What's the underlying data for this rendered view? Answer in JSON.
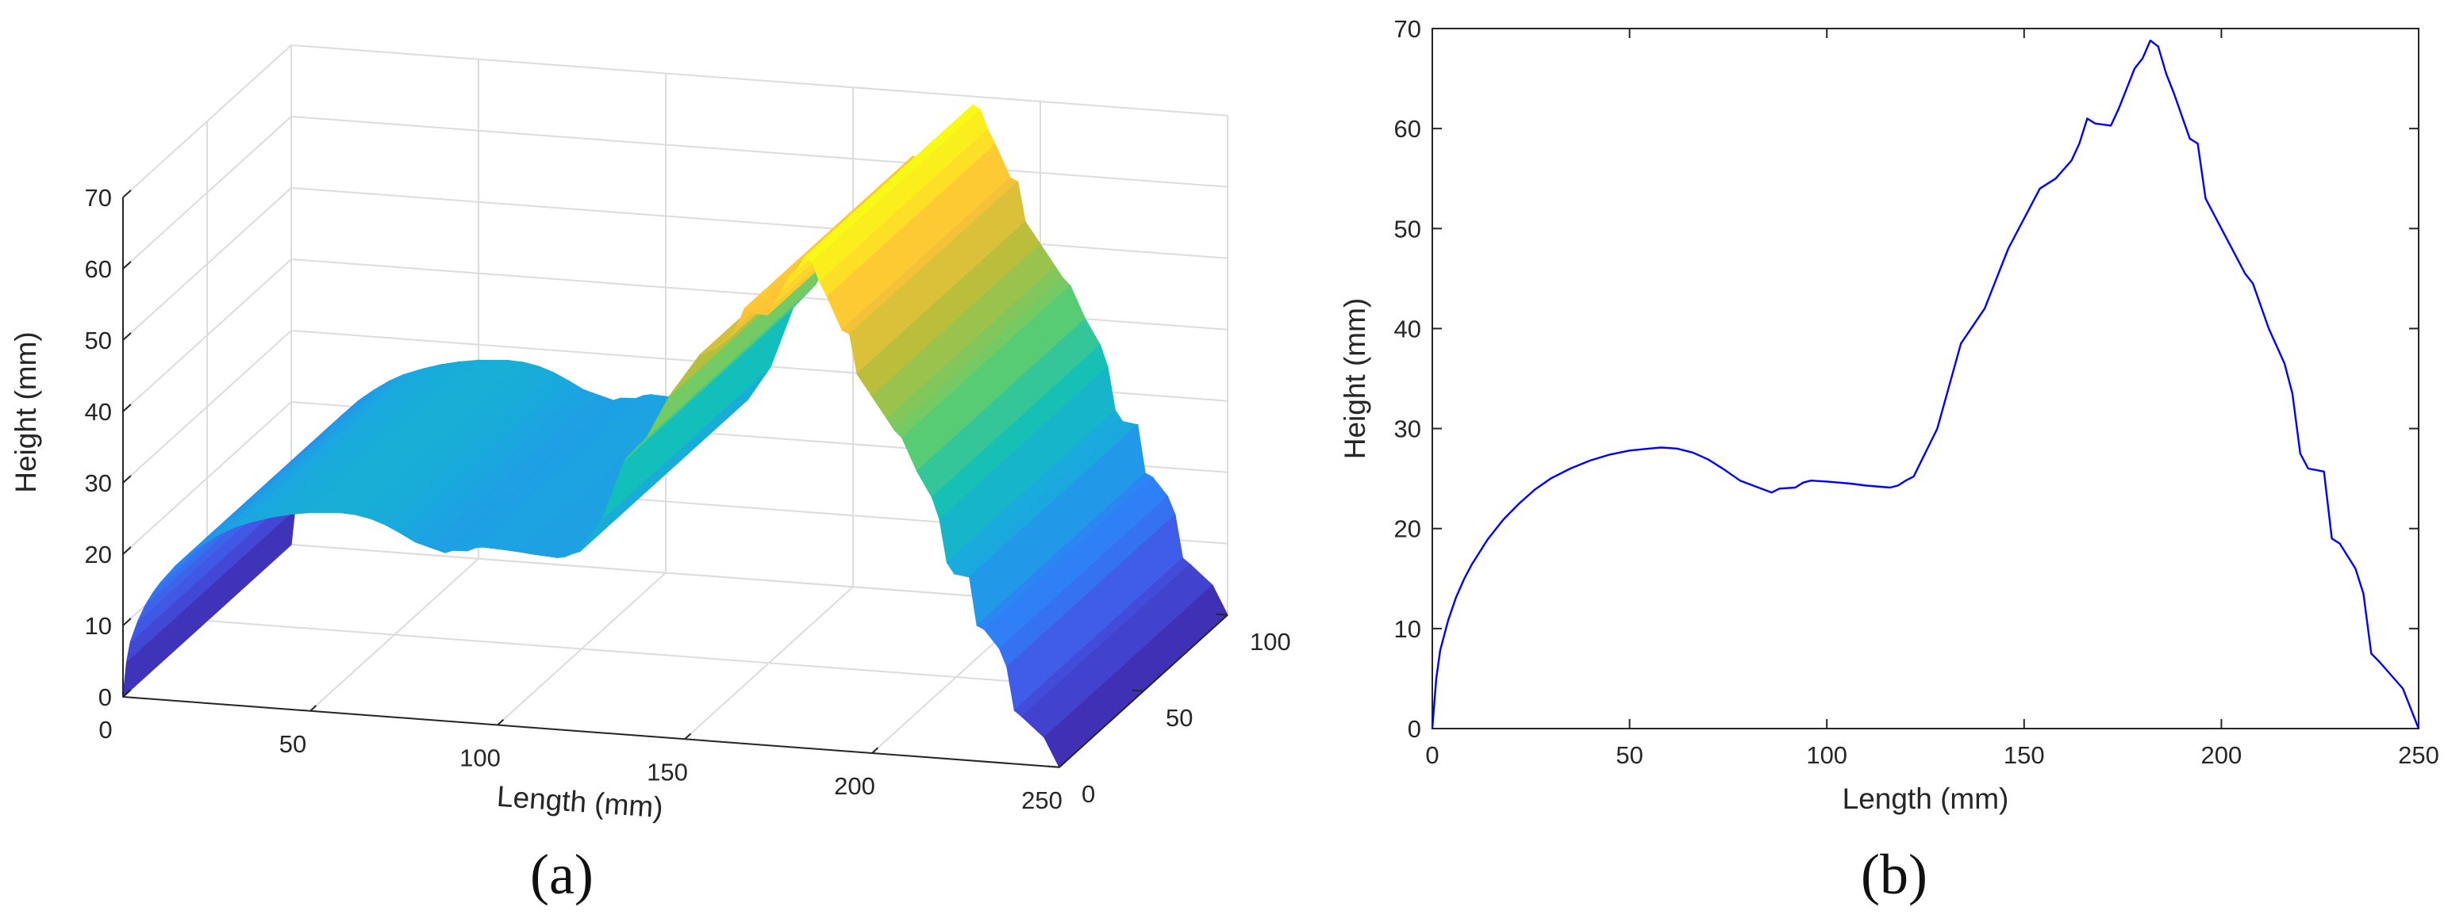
{
  "chart_data": [
    {
      "panel": "(a)",
      "type": "surface",
      "title": "",
      "xlabel": "Length (mm)",
      "ylabel": "",
      "zlabel": "Height (mm)",
      "xlim": [
        0,
        250
      ],
      "ylim": [
        0,
        100
      ],
      "zlim": [
        0,
        70
      ],
      "x_ticks": [
        "0",
        "50",
        "100",
        "150",
        "200",
        "250"
      ],
      "y_ticks": [
        "0",
        "50",
        "100"
      ],
      "z_ticks": [
        "0",
        "10",
        "20",
        "30",
        "40",
        "50",
        "60",
        "70"
      ],
      "grid": true,
      "colormap": [
        "#3e26a8",
        "#4353e4",
        "#2f7ff6",
        "#1aa8df",
        "#12bfb9",
        "#5ecd6f",
        "#bbbe3a",
        "#fec337",
        "#f9fb15"
      ],
      "profile_source": "same as panel (b), extruded along width 0-100 mm"
    },
    {
      "panel": "(b)",
      "type": "line",
      "title": "",
      "xlabel": "Length (mm)",
      "ylabel": "Height (mm)",
      "xlim": [
        0,
        250
      ],
      "ylim": [
        0,
        70
      ],
      "x_ticks": [
        "0",
        "50",
        "100",
        "150",
        "200",
        "250"
      ],
      "y_ticks": [
        "0",
        "10",
        "20",
        "30",
        "40",
        "50",
        "60",
        "70"
      ],
      "grid": false,
      "line_color": "#0000ff",
      "x": [
        0,
        1,
        2,
        4,
        6,
        8,
        10,
        14,
        18,
        22,
        26,
        30,
        35,
        40,
        45,
        50,
        55,
        58,
        62,
        66,
        70,
        74,
        78,
        82,
        86,
        88,
        92,
        94,
        96,
        100,
        106,
        110,
        116,
        118,
        120,
        122,
        128,
        134,
        140,
        146,
        154,
        158,
        162,
        164,
        166,
        168,
        172,
        174,
        176,
        178,
        180,
        182,
        184,
        186,
        188,
        192,
        194,
        196,
        200,
        204,
        206,
        208,
        212,
        216,
        218,
        220,
        222,
        226,
        228,
        230,
        234,
        236,
        238,
        240,
        246,
        250
      ],
      "y": [
        0,
        5,
        7.8,
        10.8,
        13.1,
        14.9,
        16.4,
        18.9,
        20.9,
        22.5,
        23.9,
        25,
        26,
        26.8,
        27.4,
        27.8,
        28,
        28.1,
        28,
        27.6,
        26.9,
        25.9,
        24.8,
        24.2,
        23.6,
        24,
        24.1,
        24.6,
        24.8,
        24.7,
        24.5,
        24.3,
        24.1,
        24.3,
        24.8,
        25.2,
        30,
        38.5,
        42,
        48,
        54,
        55,
        56.8,
        58.5,
        61,
        60.5,
        60.3,
        62,
        64,
        66,
        67,
        68.8,
        68.2,
        65.5,
        63.5,
        59,
        58.5,
        53,
        50,
        47,
        45.5,
        44.5,
        40,
        36.5,
        33.5,
        27.5,
        26,
        25.7,
        19,
        18.5,
        16,
        13.5,
        7.5,
        6.7,
        4,
        0
      ]
    }
  ],
  "labels": {
    "a": "(a)",
    "b": "(b)"
  }
}
